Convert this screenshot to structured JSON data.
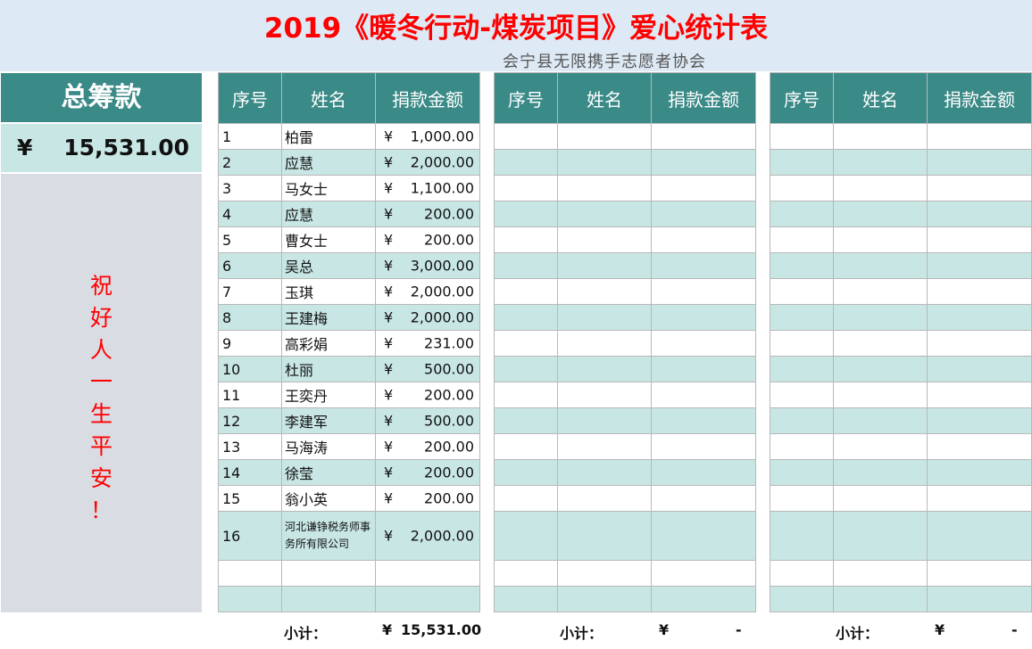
{
  "title": "2019《暖冬行动-煤炭项目》爱心统计表",
  "organization": "会宁县无限携手志愿者协会",
  "summary": {
    "heading": "总筹款",
    "currency": "¥",
    "total": "15,531.00",
    "blessing": [
      "祝",
      "好",
      "人",
      "一",
      "生",
      "平",
      "安",
      "！"
    ]
  },
  "columns": {
    "seq": "序号",
    "name": "姓名",
    "amount": "捐款金额"
  },
  "donations": [
    {
      "seq": "1",
      "name": "柏雷",
      "amount": "1,000.00"
    },
    {
      "seq": "2",
      "name": "应慧",
      "amount": "2,000.00"
    },
    {
      "seq": "3",
      "name": "马女士",
      "amount": "1,100.00"
    },
    {
      "seq": "4",
      "name": "应慧",
      "amount": "200.00"
    },
    {
      "seq": "5",
      "name": "曹女士",
      "amount": "200.00"
    },
    {
      "seq": "6",
      "name": "吴总",
      "amount": "3,000.00"
    },
    {
      "seq": "7",
      "name": "玉琪",
      "amount": "2,000.00"
    },
    {
      "seq": "8",
      "name": "王建梅",
      "amount": "2,000.00"
    },
    {
      "seq": "9",
      "name": "高彩娟",
      "amount": "231.00"
    },
    {
      "seq": "10",
      "name": "杜丽",
      "amount": "500.00"
    },
    {
      "seq": "11",
      "name": "王奕丹",
      "amount": "200.00"
    },
    {
      "seq": "12",
      "name": "李建军",
      "amount": "500.00"
    },
    {
      "seq": "13",
      "name": "马海涛",
      "amount": "200.00"
    },
    {
      "seq": "14",
      "name": "徐莹",
      "amount": "200.00"
    },
    {
      "seq": "15",
      "name": "翁小英",
      "amount": "200.00"
    },
    {
      "seq": "16",
      "name": "河北谦铮税务师事务所有限公司",
      "amount": "2,000.00"
    }
  ],
  "subtotals": [
    {
      "label": "小计：",
      "currency": "¥",
      "value": "15,531.00"
    },
    {
      "label": "小计：",
      "currency": "¥",
      "value": "-"
    },
    {
      "label": "小计：",
      "currency": "¥",
      "value": "-"
    }
  ],
  "colors": {
    "header_bg": "#3a8a87",
    "alt_row": "#c7e6e4",
    "title": "#ff0000",
    "banner_bg": "#dde9f4"
  }
}
